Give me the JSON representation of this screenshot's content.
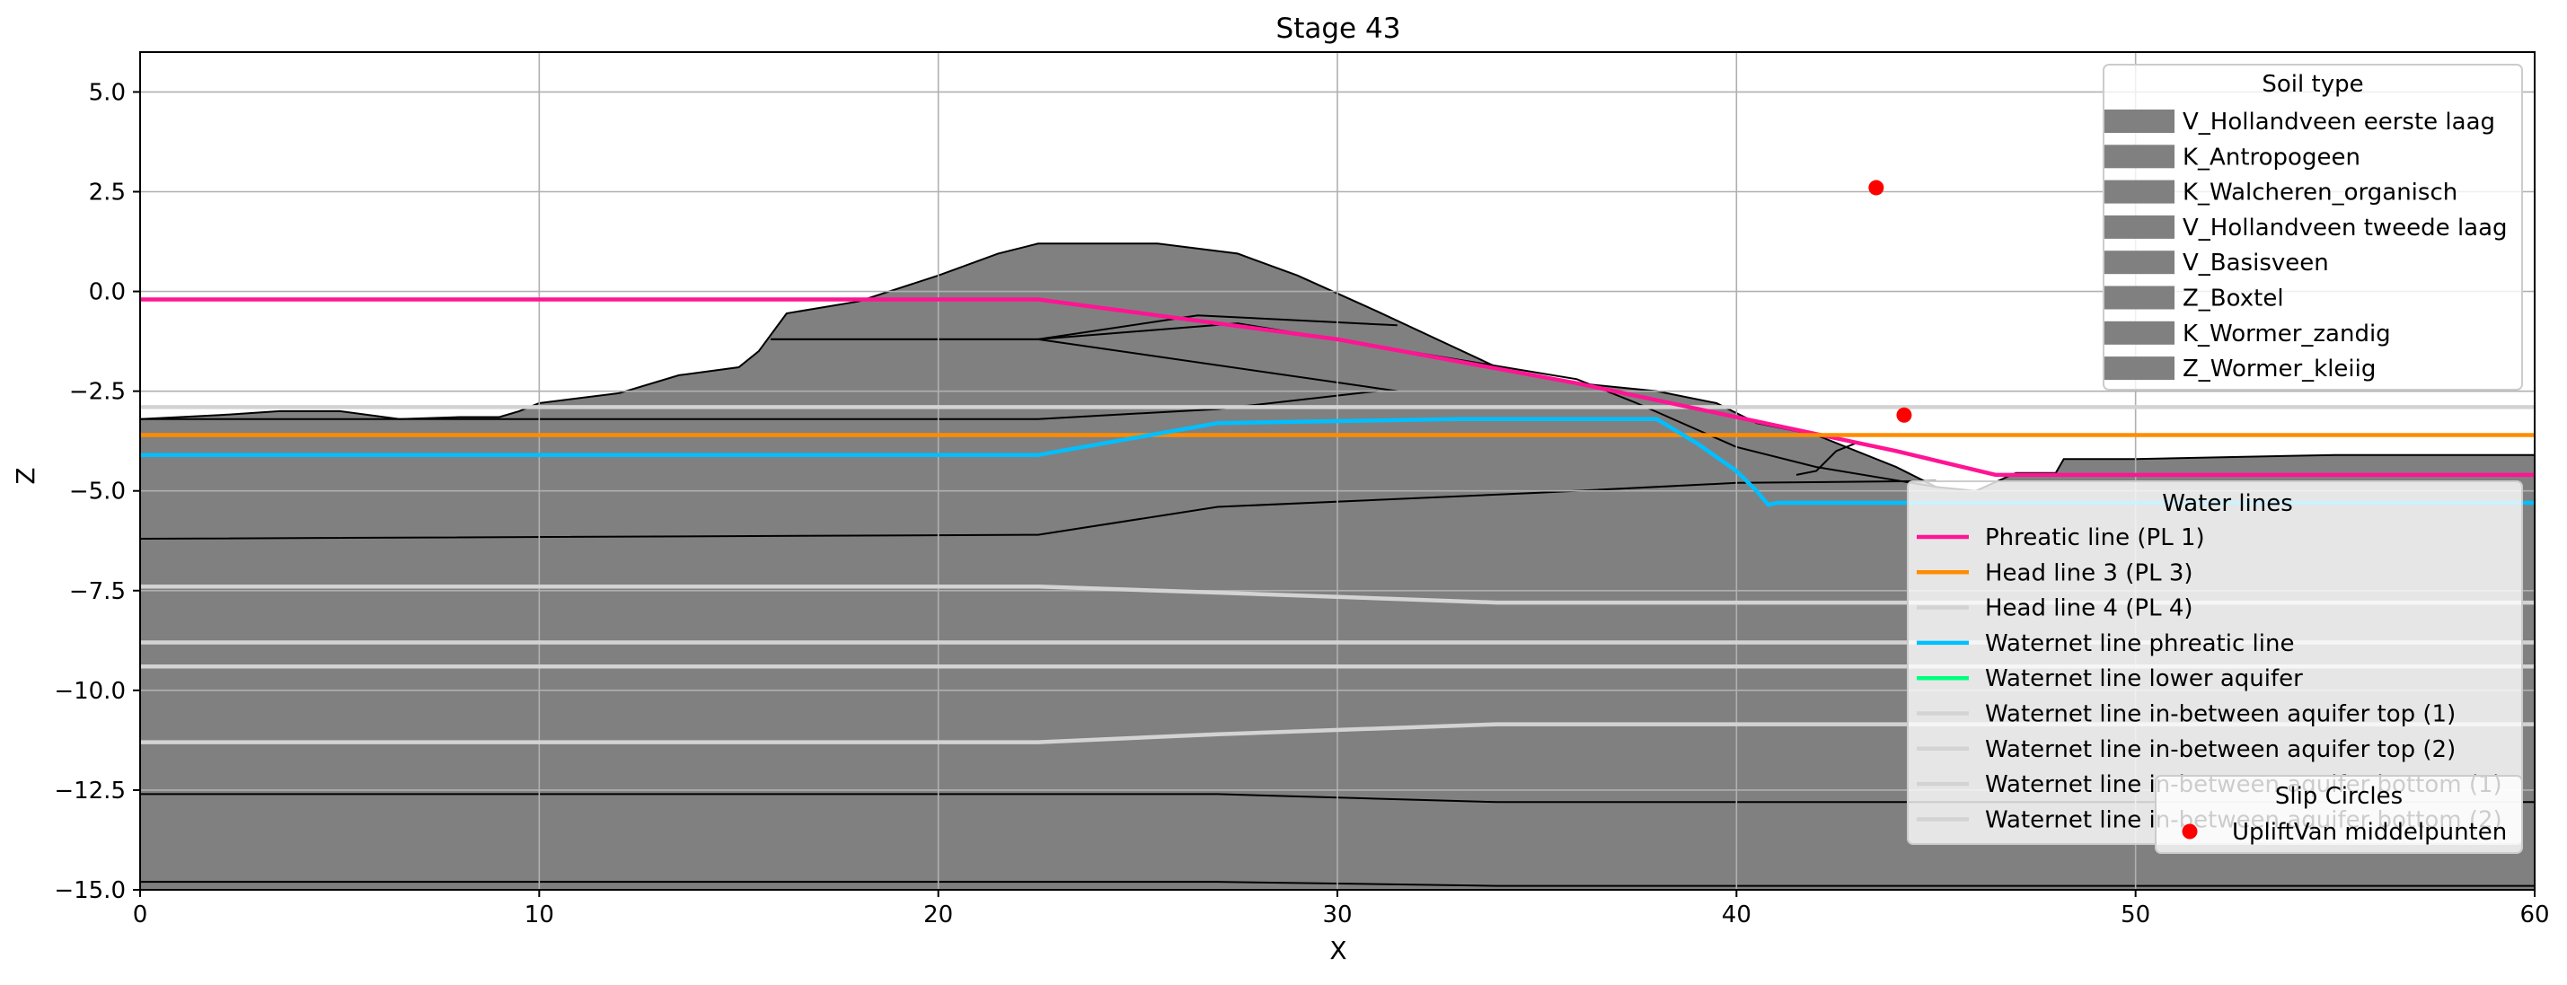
{
  "chart_data": {
    "type": "area",
    "title": "Stage 43",
    "xlabel": "X",
    "ylabel": "Z",
    "xlim": [
      0,
      60
    ],
    "ylim": [
      -15,
      6
    ],
    "xticks": [
      {
        "value": 0,
        "label": "0"
      },
      {
        "value": 10,
        "label": "10"
      },
      {
        "value": 20,
        "label": "20"
      },
      {
        "value": 30,
        "label": "30"
      },
      {
        "value": 40,
        "label": "40"
      },
      {
        "value": 50,
        "label": "50"
      },
      {
        "value": 60,
        "label": "60"
      }
    ],
    "yticks": [
      {
        "value": 5,
        "label": "5.0"
      },
      {
        "value": 2.5,
        "label": "2.5"
      },
      {
        "value": 0,
        "label": "0.0"
      },
      {
        "value": -2.5,
        "label": "−2.5"
      },
      {
        "value": -5,
        "label": "−5.0"
      },
      {
        "value": -7.5,
        "label": "−7.5"
      },
      {
        "value": -10,
        "label": "−10.0"
      },
      {
        "value": -12.5,
        "label": "−12.5"
      },
      {
        "value": -15,
        "label": "−15.0"
      }
    ],
    "grid": true,
    "soil_color": "#808080",
    "ground_surface": [
      [
        0,
        -3.2
      ],
      [
        2,
        -3.1
      ],
      [
        3.5,
        -3.0
      ],
      [
        5,
        -3.0
      ],
      [
        6.5,
        -3.2
      ],
      [
        8,
        -3.15
      ],
      [
        9,
        -3.15
      ],
      [
        9.5,
        -3.0
      ],
      [
        10,
        -2.8
      ],
      [
        12,
        -2.55
      ],
      [
        13.5,
        -2.1
      ],
      [
        15,
        -1.9
      ],
      [
        15.5,
        -1.5
      ],
      [
        16.2,
        -0.55
      ],
      [
        18,
        -0.25
      ],
      [
        20,
        0.4
      ],
      [
        21.5,
        0.95
      ],
      [
        22.5,
        1.2
      ],
      [
        25.5,
        1.2
      ],
      [
        27.5,
        0.95
      ],
      [
        29,
        0.4
      ],
      [
        31,
        -0.5
      ],
      [
        34,
        -1.9
      ],
      [
        36,
        -2.3
      ],
      [
        38,
        -2.5
      ],
      [
        39.5,
        -2.8
      ],
      [
        40.5,
        -3.3
      ],
      [
        42,
        -3.6
      ],
      [
        44,
        -4.4
      ],
      [
        45,
        -4.9
      ],
      [
        46,
        -5.0
      ],
      [
        47,
        -4.55
      ],
      [
        48,
        -4.55
      ],
      [
        48.2,
        -4.2
      ],
      [
        50,
        -4.2
      ],
      [
        55,
        -4.1
      ],
      [
        60,
        -4.1
      ]
    ],
    "layer_boundaries": [
      [
        [
          15.8,
          -1.2
        ],
        [
          22.5,
          -1.2
        ],
        [
          26.5,
          -0.6
        ],
        [
          31.5,
          -0.85
        ]
      ],
      [
        [
          15.8,
          -1.2
        ],
        [
          22.5,
          -1.2
        ],
        [
          31.5,
          -2.5
        ]
      ],
      [
        [
          22.5,
          -1.2
        ],
        [
          27.5,
          -0.8
        ],
        [
          36,
          -2.2
        ],
        [
          37.5,
          -2.8
        ],
        [
          40,
          -3.9
        ],
        [
          42,
          -4.4
        ],
        [
          45,
          -4.9
        ]
      ],
      [
        [
          0,
          -3.2
        ],
        [
          22.5,
          -3.2
        ],
        [
          27,
          -2.95
        ],
        [
          31,
          -2.5
        ]
      ],
      [
        [
          41.5,
          -4.6
        ],
        [
          42,
          -4.5
        ],
        [
          42.5,
          -4.0
        ],
        [
          43,
          -3.8
        ]
      ],
      [
        [
          0,
          -6.2
        ],
        [
          22.5,
          -6.1
        ],
        [
          27,
          -5.4
        ],
        [
          35,
          -5.05
        ],
        [
          40,
          -4.8
        ],
        [
          45,
          -4.75
        ]
      ],
      [
        [
          0,
          -12.6
        ],
        [
          27,
          -12.6
        ],
        [
          34,
          -12.8
        ],
        [
          60,
          -12.8
        ]
      ],
      [
        [
          0,
          -14.8
        ],
        [
          27,
          -14.8
        ],
        [
          34,
          -14.9
        ],
        [
          60,
          -14.9
        ]
      ]
    ],
    "waternet_grey_lines": [
      {
        "name": "Head line 4 (PL 4)",
        "points": [
          [
            0,
            -2.9
          ],
          [
            60,
            -2.9
          ]
        ]
      },
      {
        "name": "Waternet line in-between aquifer top (1)",
        "points": [
          [
            0,
            -7.4
          ],
          [
            22.5,
            -7.4
          ],
          [
            27,
            -7.55
          ],
          [
            34,
            -7.8
          ],
          [
            60,
            -7.8
          ]
        ]
      },
      {
        "name": "Waternet line in-between aquifer top (2)",
        "points": [
          [
            0,
            -8.8
          ],
          [
            60,
            -8.8
          ]
        ]
      },
      {
        "name": "Waternet line in-between aquifer bottom (1)",
        "points": [
          [
            0,
            -9.4
          ],
          [
            60,
            -9.4
          ]
        ]
      },
      {
        "name": "Waternet line in-between aquifer bottom (2)",
        "points": [
          [
            0,
            -11.3
          ],
          [
            22.5,
            -11.3
          ],
          [
            27,
            -11.1
          ],
          [
            34,
            -10.85
          ],
          [
            60,
            -10.85
          ]
        ]
      }
    ],
    "series": [
      {
        "name": "Phreatic line (PL 1)",
        "color": "#ff1493",
        "points": [
          [
            0,
            -0.2
          ],
          [
            22.5,
            -0.2
          ],
          [
            30,
            -1.2
          ],
          [
            36,
            -2.3
          ],
          [
            44,
            -4.0
          ],
          [
            46.5,
            -4.6
          ],
          [
            60,
            -4.6
          ]
        ]
      },
      {
        "name": "Head line 3 (PL 3)",
        "color": "#ff8c00",
        "points": [
          [
            0,
            -3.6
          ],
          [
            60,
            -3.6
          ]
        ]
      },
      {
        "name": "Head line 4 (PL 4)",
        "color": "#d3d3d3",
        "points": [
          [
            0,
            -2.9
          ],
          [
            60,
            -2.9
          ]
        ]
      },
      {
        "name": "Waternet line phreatic line",
        "color": "#00bfff",
        "points": [
          [
            0,
            -4.1
          ],
          [
            22.5,
            -4.1
          ],
          [
            27,
            -3.3
          ],
          [
            33,
            -3.2
          ],
          [
            38,
            -3.2
          ],
          [
            39,
            -3.8
          ],
          [
            40,
            -4.5
          ],
          [
            40.5,
            -5.0
          ],
          [
            40.8,
            -5.35
          ],
          [
            41,
            -5.3
          ],
          [
            60,
            -5.3
          ]
        ]
      },
      {
        "name": "Waternet line lower aquifer",
        "color": "#00ff7f",
        "points": []
      },
      {
        "name": "Waternet line in-between aquifer top (1)",
        "color": "#d3d3d3",
        "points": []
      },
      {
        "name": "Waternet line in-between aquifer top (2)",
        "color": "#d3d3d3",
        "points": []
      },
      {
        "name": "Waternet line in-between aquifer bottom (1)",
        "color": "#d3d3d3",
        "points": []
      },
      {
        "name": "Waternet line in-between aquifer bottom (2)",
        "color": "#d3d3d3",
        "points": []
      }
    ],
    "slip_circle_points": [
      [
        43.5,
        2.6
      ],
      [
        44.2,
        -3.1
      ]
    ],
    "legends": {
      "soil_type": {
        "title": "Soil type",
        "placement": "upper right",
        "entries": [
          "V_Hollandveen eerste laag",
          "K_Antropogeen",
          "K_Walcheren_organisch",
          "V_Hollandveen tweede laag",
          "V_Basisveen",
          "Z_Boxtel",
          "K_Wormer_zandig",
          "Z_Wormer_kleiig"
        ]
      },
      "water_lines": {
        "title": "Water lines",
        "placement": "center right",
        "entries": [
          "Phreatic line (PL 1)",
          "Head line 3 (PL 3)",
          "Head line 4 (PL 4)",
          "Waternet line phreatic line",
          "Waternet line lower aquifer",
          "Waternet line in-between aquifer top (1)",
          "Waternet line in-between aquifer top (2)",
          "Waternet line in-between aquifer bottom (1)",
          "Waternet line in-between aquifer bottom (2)"
        ]
      },
      "slip_circles": {
        "title": "Slip Circles",
        "placement": "lower right",
        "entries": [
          "UpliftVan middelpunten"
        ],
        "marker_color": "#ff0000"
      }
    }
  }
}
